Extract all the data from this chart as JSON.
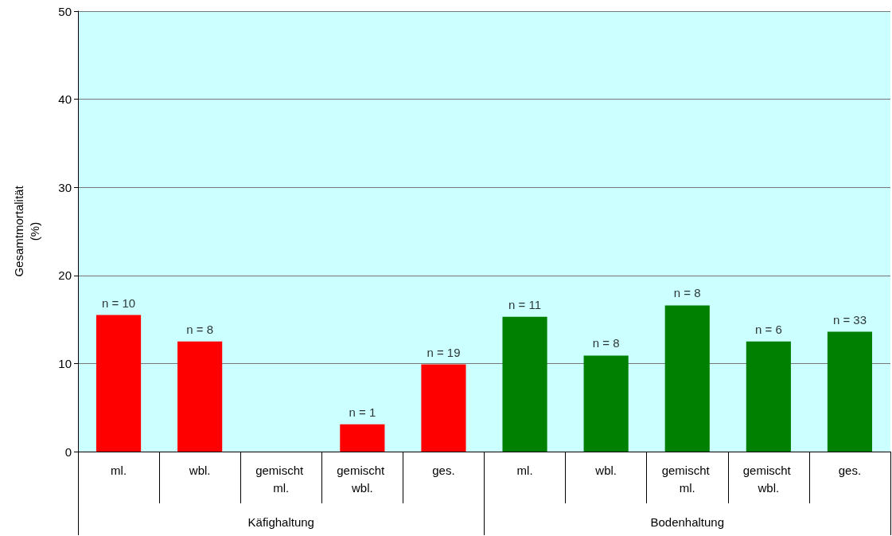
{
  "chart_data": {
    "type": "bar",
    "categories": [
      "ml.",
      "wbl.",
      "gemischt ml.",
      "gemischt wbl.",
      "ges.",
      "ml.",
      "wbl.",
      "gemischt ml.",
      "gemischt wbl.",
      "ges."
    ],
    "values": [
      15.5,
      12.5,
      null,
      3.1,
      9.9,
      15.3,
      10.9,
      16.6,
      12.5,
      13.6
    ],
    "colors": [
      "#ff0000",
      "#ff0000",
      "#ff0000",
      "#ff0000",
      "#ff0000",
      "#008000",
      "#008000",
      "#008000",
      "#008000",
      "#008000"
    ],
    "annotations": [
      "Käfighaltung",
      "Bodenhaltung",
      "n = 10",
      "n = 8",
      "n = 1",
      "n = 19",
      "n = 11",
      "n = 8",
      "n = 8",
      "n = 6",
      "n = 33"
    ],
    "ylabel": "Gesamtmortalität\n(%)",
    "ylim": [
      0,
      50
    ],
    "yticks": [
      0,
      10,
      20,
      30,
      40,
      50
    ],
    "grid": "y"
  }
}
